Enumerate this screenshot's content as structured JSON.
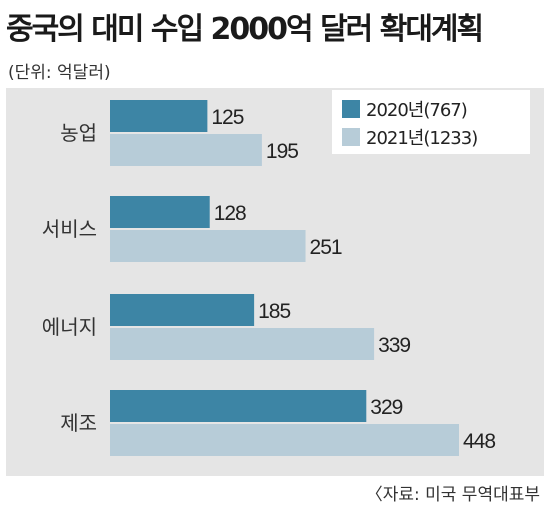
{
  "title": "중국의 대미 수입 2000억 달러 확대계획",
  "unit_note": "(단위: 억달러)",
  "source": "〈자료: 미국 무역대표부",
  "chart_data": {
    "type": "bar",
    "orientation": "horizontal",
    "categories": [
      "농업",
      "서비스",
      "에너지",
      "제조"
    ],
    "series": [
      {
        "name": "2020년(767)",
        "values": [
          125,
          128,
          185,
          329
        ],
        "color": "#3d85a5"
      },
      {
        "name": "2021년(1233)",
        "values": [
          195,
          251,
          339,
          448
        ],
        "color": "#b7ccd8"
      }
    ],
    "legend": "top-right",
    "grid": false,
    "xlim": [
      0,
      448
    ]
  }
}
